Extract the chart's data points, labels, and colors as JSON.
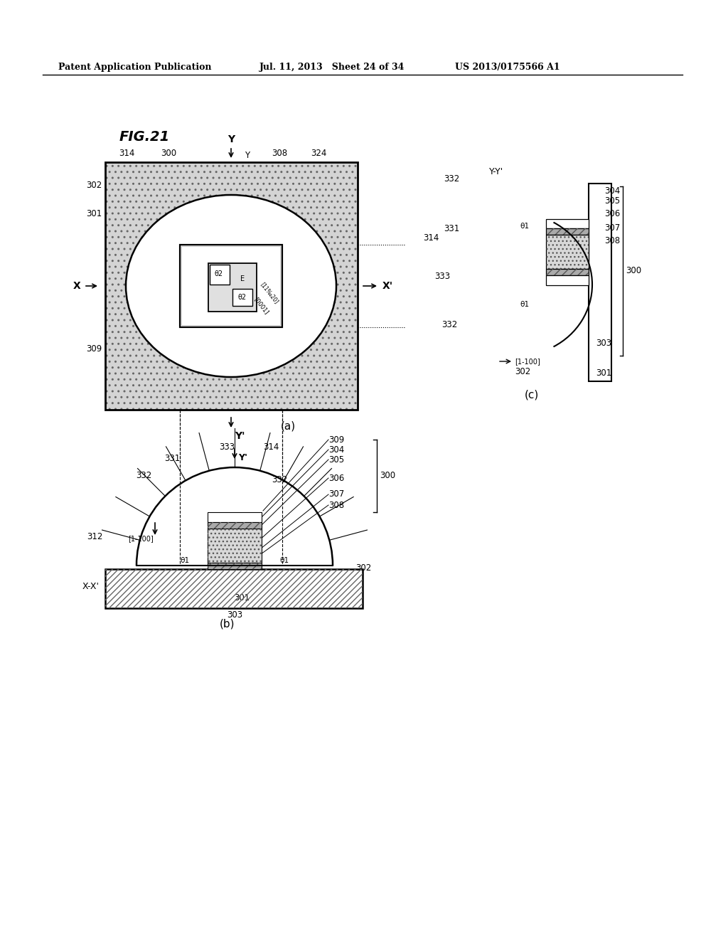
{
  "header_left": "Patent Application Publication",
  "header_mid": "Jul. 11, 2013   Sheet 24 of 34",
  "header_right": "US 2013/0175566 A1",
  "fig_title": "FIG.21",
  "bg_color": "#ffffff",
  "line_color": "#000000",
  "label_a": "(a)",
  "label_b": "(b)",
  "label_c": "(c)"
}
